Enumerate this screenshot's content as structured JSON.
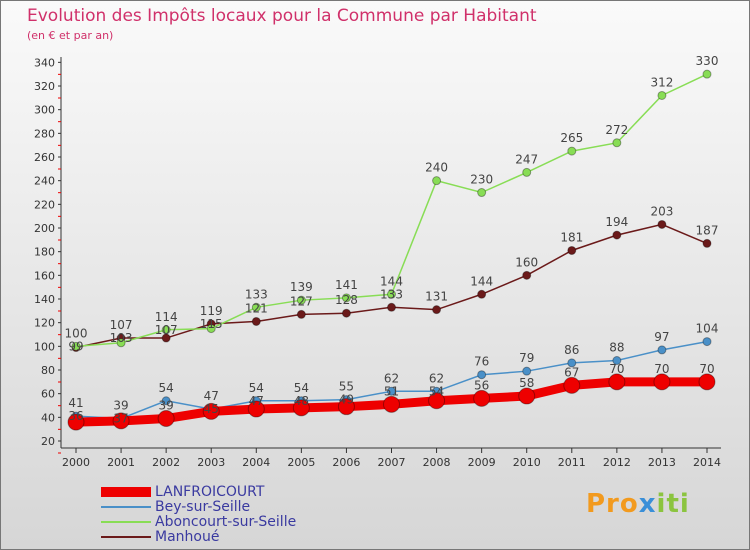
{
  "chart_data": {
    "type": "line",
    "title": "Evolution des Impôts locaux pour la Commune par Habitant",
    "subtitle": "(en € et par an)",
    "xlabel": "",
    "ylabel": "",
    "x": [
      "2000",
      "2001",
      "2002",
      "2003",
      "2004",
      "2005",
      "2006",
      "2007",
      "2008",
      "2009",
      "2010",
      "2011",
      "2012",
      "2013",
      "2014"
    ],
    "ylim": [
      20,
      340
    ],
    "yticks": [
      20,
      40,
      60,
      80,
      100,
      120,
      140,
      160,
      180,
      200,
      220,
      240,
      260,
      280,
      300,
      320,
      340
    ],
    "series": [
      {
        "name": "LANFROICOURT",
        "color": "#ee0000",
        "values": [
          36,
          37,
          39,
          45,
          47,
          48,
          49,
          51,
          54,
          56,
          58,
          67,
          70,
          70,
          70
        ]
      },
      {
        "name": "Bey-sur-Seille",
        "color": "#4a90c8",
        "values": [
          41,
          39,
          54,
          47,
          54,
          54,
          55,
          62,
          62,
          76,
          79,
          86,
          88,
          97,
          104
        ]
      },
      {
        "name": "Aboncourt-sur-Seille",
        "color": "#88dd55",
        "values": [
          100,
          103,
          114,
          115,
          133,
          139,
          141,
          144,
          240,
          230,
          247,
          265,
          272,
          312,
          330
        ]
      },
      {
        "name": "Manhoué",
        "color": "#6b1a1a",
        "values": [
          99,
          107,
          107,
          119,
          121,
          127,
          128,
          133,
          131,
          144,
          160,
          181,
          194,
          203,
          187
        ]
      }
    ],
    "legend_position": "bottom-left"
  },
  "logo": "Proxiti"
}
